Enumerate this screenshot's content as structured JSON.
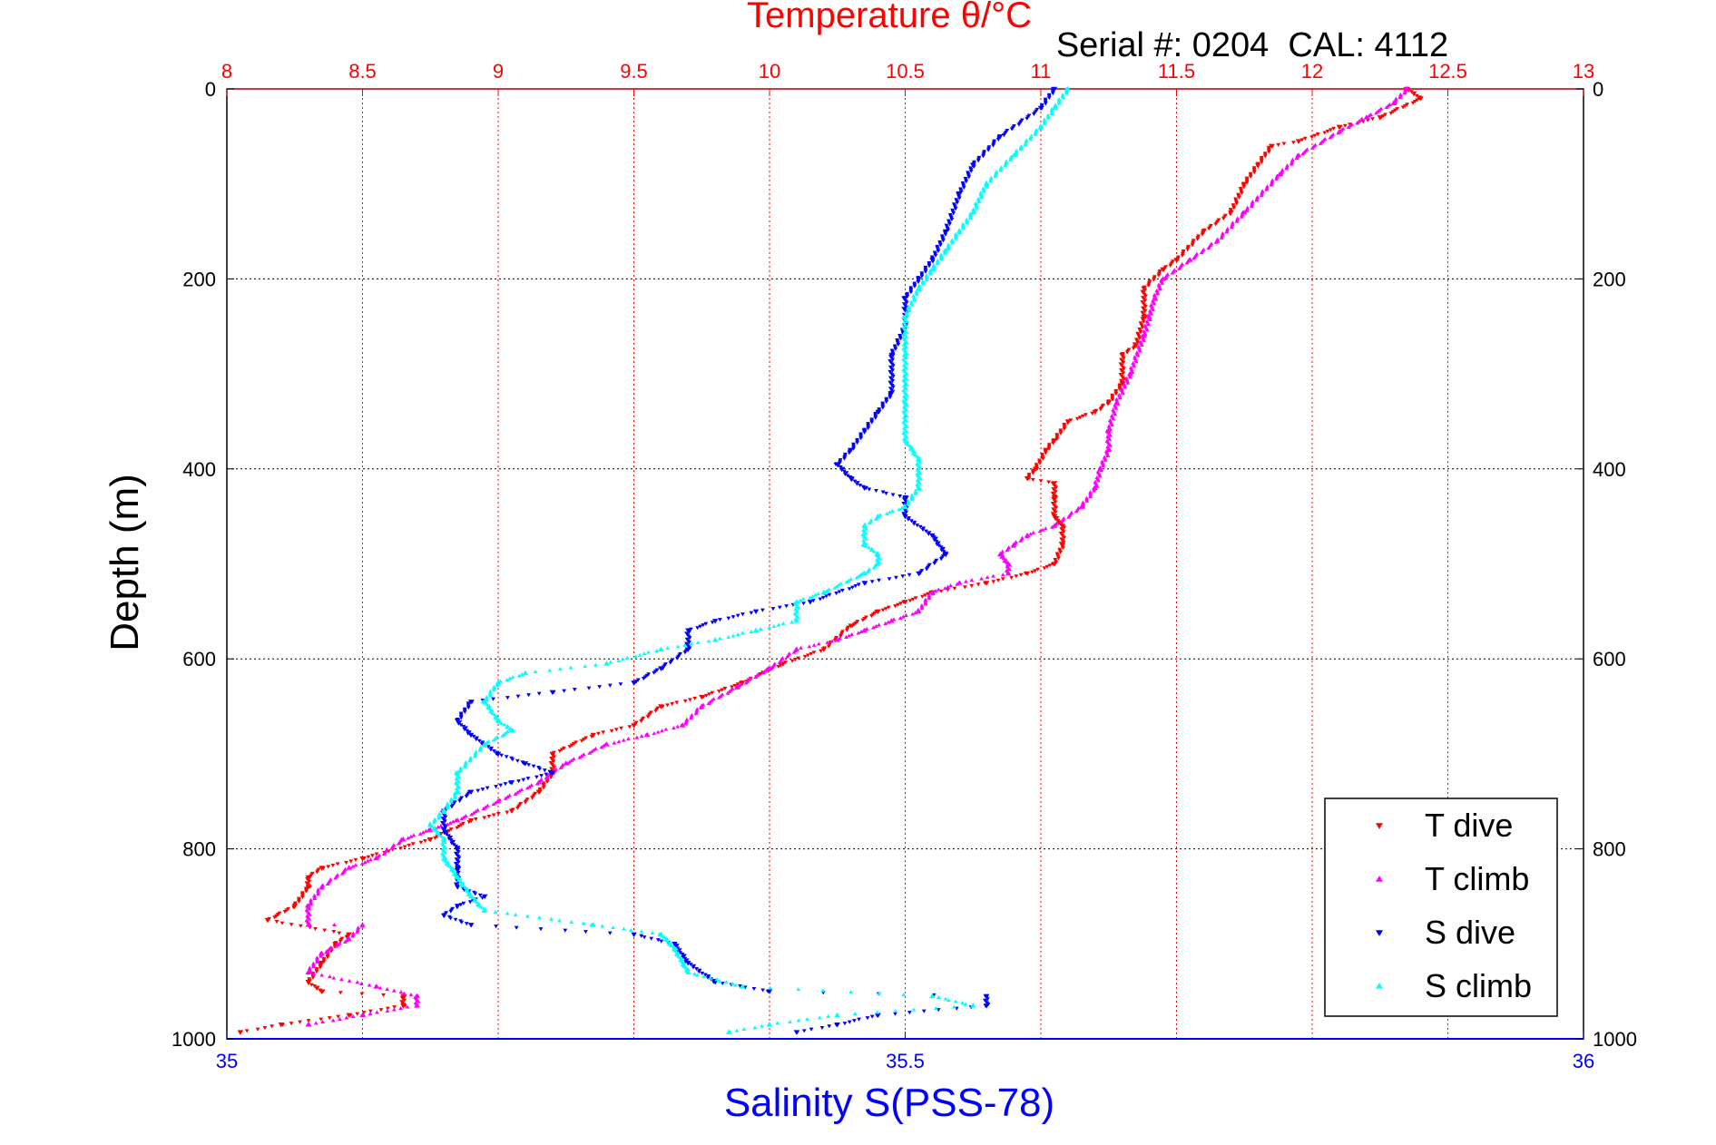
{
  "chart_data": {
    "type": "scatter",
    "title": "Temperature θ/°C",
    "subtitle": "Serial #: 0204  CAL: 4112",
    "xlabel": "Salinity S(PSS-78)",
    "ylabel": "Depth (m)",
    "x_top_label": "Temperature θ/°C",
    "x_top_lim": [
      8,
      13
    ],
    "x_top_ticks": [
      "8",
      "8.5",
      "9",
      "9.5",
      "10",
      "10.5",
      "11",
      "11.5",
      "12",
      "12.5",
      "13"
    ],
    "x_bottom_lim": [
      35,
      36
    ],
    "x_bottom_ticks": [
      "35",
      "35.5",
      "36"
    ],
    "ylim": [
      0,
      1000
    ],
    "y_reversed": true,
    "y_ticks": [
      "0",
      "200",
      "400",
      "600",
      "800",
      "1000"
    ],
    "grid": true,
    "legend_position": "bottom-right",
    "series": [
      {
        "name": "T dive",
        "axis": "temperature",
        "color": "#ff0000",
        "marker": "triangle-down",
        "points": [
          [
            12.35,
            0
          ],
          [
            12.4,
            10
          ],
          [
            12.25,
            30
          ],
          [
            12.1,
            40
          ],
          [
            11.95,
            55
          ],
          [
            11.85,
            60
          ],
          [
            11.8,
            80
          ],
          [
            11.75,
            100
          ],
          [
            11.7,
            130
          ],
          [
            11.6,
            150
          ],
          [
            11.5,
            180
          ],
          [
            11.45,
            190
          ],
          [
            11.38,
            210
          ],
          [
            11.38,
            240
          ],
          [
            11.35,
            270
          ],
          [
            11.3,
            280
          ],
          [
            11.3,
            310
          ],
          [
            11.25,
            330
          ],
          [
            11.2,
            340
          ],
          [
            11.1,
            350
          ],
          [
            11.05,
            370
          ],
          [
            11.02,
            380
          ],
          [
            10.98,
            400
          ],
          [
            10.95,
            410
          ],
          [
            11.05,
            415
          ],
          [
            11.05,
            430
          ],
          [
            11.05,
            450
          ],
          [
            11.08,
            460
          ],
          [
            11.08,
            480
          ],
          [
            11.05,
            500
          ],
          [
            10.95,
            510
          ],
          [
            10.8,
            520
          ],
          [
            10.6,
            530
          ],
          [
            10.5,
            540
          ],
          [
            10.4,
            550
          ],
          [
            10.3,
            565
          ],
          [
            10.2,
            590
          ],
          [
            10.05,
            605
          ],
          [
            9.9,
            625
          ],
          [
            9.75,
            640
          ],
          [
            9.6,
            650
          ],
          [
            9.5,
            670
          ],
          [
            9.35,
            680
          ],
          [
            9.2,
            700
          ],
          [
            9.2,
            720
          ],
          [
            9.15,
            740
          ],
          [
            9.05,
            760
          ],
          [
            8.9,
            770
          ],
          [
            8.75,
            790
          ],
          [
            8.5,
            810
          ],
          [
            8.35,
            820
          ],
          [
            8.3,
            830
          ],
          [
            8.3,
            840
          ],
          [
            8.25,
            860
          ],
          [
            8.15,
            875
          ],
          [
            8.45,
            890
          ],
          [
            8.4,
            900
          ],
          [
            8.35,
            920
          ],
          [
            8.3,
            940
          ],
          [
            8.35,
            950
          ],
          [
            8.65,
            955
          ],
          [
            8.65,
            965
          ],
          [
            8.45,
            975
          ],
          [
            8.2,
            985
          ],
          [
            8.05,
            993
          ]
        ]
      },
      {
        "name": "T climb",
        "axis": "temperature",
        "color": "#ff00ff",
        "marker": "triangle-up",
        "points": [
          [
            12.35,
            0
          ],
          [
            12.3,
            15
          ],
          [
            12.2,
            30
          ],
          [
            12.1,
            45
          ],
          [
            11.95,
            70
          ],
          [
            11.88,
            90
          ],
          [
            11.75,
            130
          ],
          [
            11.65,
            160
          ],
          [
            11.55,
            180
          ],
          [
            11.45,
            200
          ],
          [
            11.42,
            220
          ],
          [
            11.4,
            240
          ],
          [
            11.38,
            260
          ],
          [
            11.33,
            300
          ],
          [
            11.28,
            330
          ],
          [
            11.25,
            360
          ],
          [
            11.25,
            380
          ],
          [
            11.22,
            400
          ],
          [
            11.2,
            420
          ],
          [
            11.15,
            440
          ],
          [
            11.05,
            460
          ],
          [
            10.95,
            470
          ],
          [
            10.9,
            480
          ],
          [
            10.85,
            490
          ],
          [
            10.88,
            500
          ],
          [
            10.88,
            510
          ],
          [
            10.7,
            520
          ],
          [
            10.6,
            530
          ],
          [
            10.55,
            550
          ],
          [
            10.45,
            560
          ],
          [
            10.35,
            570
          ],
          [
            10.25,
            580
          ],
          [
            10.1,
            590
          ],
          [
            10.0,
            610
          ],
          [
            9.88,
            630
          ],
          [
            9.75,
            650
          ],
          [
            9.68,
            670
          ],
          [
            9.55,
            680
          ],
          [
            9.4,
            690
          ],
          [
            9.25,
            710
          ],
          [
            9.15,
            730
          ],
          [
            9.0,
            750
          ],
          [
            8.85,
            770
          ],
          [
            8.75,
            780
          ],
          [
            8.65,
            790
          ],
          [
            8.55,
            810
          ],
          [
            8.45,
            820
          ],
          [
            8.35,
            840
          ],
          [
            8.3,
            860
          ],
          [
            8.3,
            880
          ],
          [
            8.5,
            880
          ],
          [
            8.45,
            895
          ],
          [
            8.35,
            910
          ],
          [
            8.3,
            930
          ],
          [
            8.55,
            945
          ],
          [
            8.7,
            955
          ],
          [
            8.7,
            965
          ],
          [
            8.5,
            975
          ],
          [
            8.3,
            985
          ]
        ]
      },
      {
        "name": "S dive",
        "axis": "salinity",
        "color": "#0000ff",
        "marker": "triangle-down",
        "points": [
          [
            35.61,
            0
          ],
          [
            35.6,
            20
          ],
          [
            35.57,
            50
          ],
          [
            35.55,
            80
          ],
          [
            35.54,
            110
          ],
          [
            35.53,
            150
          ],
          [
            35.52,
            180
          ],
          [
            35.51,
            200
          ],
          [
            35.5,
            220
          ],
          [
            35.5,
            250
          ],
          [
            35.49,
            280
          ],
          [
            35.49,
            320
          ],
          [
            35.48,
            340
          ],
          [
            35.47,
            360
          ],
          [
            35.46,
            380
          ],
          [
            35.45,
            395
          ],
          [
            35.46,
            410
          ],
          [
            35.47,
            420
          ],
          [
            35.5,
            430
          ],
          [
            35.5,
            450
          ],
          [
            35.52,
            470
          ],
          [
            35.53,
            490
          ],
          [
            35.51,
            510
          ],
          [
            35.47,
            520
          ],
          [
            35.43,
            540
          ],
          [
            35.39,
            550
          ],
          [
            35.36,
            560
          ],
          [
            35.34,
            570
          ],
          [
            35.34,
            590
          ],
          [
            35.32,
            610
          ],
          [
            35.3,
            625
          ],
          [
            35.24,
            635
          ],
          [
            35.18,
            645
          ],
          [
            35.17,
            665
          ],
          [
            35.18,
            680
          ],
          [
            35.2,
            700
          ],
          [
            35.22,
            710
          ],
          [
            35.24,
            720
          ],
          [
            35.21,
            730
          ],
          [
            35.18,
            740
          ],
          [
            35.16,
            760
          ],
          [
            35.16,
            780
          ],
          [
            35.17,
            800
          ],
          [
            35.17,
            820
          ],
          [
            35.17,
            840
          ],
          [
            35.19,
            850
          ],
          [
            35.17,
            860
          ],
          [
            35.16,
            870
          ],
          [
            35.18,
            880
          ],
          [
            35.3,
            890
          ],
          [
            35.33,
            900
          ],
          [
            35.34,
            920
          ],
          [
            35.36,
            940
          ],
          [
            35.4,
            950
          ],
          [
            35.56,
            955
          ],
          [
            35.56,
            965
          ],
          [
            35.48,
            975
          ],
          [
            35.45,
            985
          ],
          [
            35.42,
            993
          ]
        ]
      },
      {
        "name": "S climb",
        "axis": "salinity",
        "color": "#00ffff",
        "marker": "triangle-up",
        "points": [
          [
            35.62,
            0
          ],
          [
            35.61,
            20
          ],
          [
            35.6,
            40
          ],
          [
            35.58,
            70
          ],
          [
            35.56,
            100
          ],
          [
            35.55,
            130
          ],
          [
            35.54,
            150
          ],
          [
            35.53,
            170
          ],
          [
            35.52,
            190
          ],
          [
            35.51,
            210
          ],
          [
            35.5,
            240
          ],
          [
            35.5,
            280
          ],
          [
            35.5,
            330
          ],
          [
            35.5,
            370
          ],
          [
            35.51,
            390
          ],
          [
            35.51,
            420
          ],
          [
            35.5,
            440
          ],
          [
            35.48,
            450
          ],
          [
            35.47,
            460
          ],
          [
            35.47,
            480
          ],
          [
            35.48,
            490
          ],
          [
            35.48,
            500
          ],
          [
            35.47,
            510
          ],
          [
            35.44,
            530
          ],
          [
            35.42,
            540
          ],
          [
            35.42,
            560
          ],
          [
            35.39,
            570
          ],
          [
            35.36,
            580
          ],
          [
            35.32,
            590
          ],
          [
            35.28,
            605
          ],
          [
            35.22,
            615
          ],
          [
            35.2,
            625
          ],
          [
            35.19,
            645
          ],
          [
            35.2,
            665
          ],
          [
            35.21,
            675
          ],
          [
            35.19,
            690
          ],
          [
            35.17,
            720
          ],
          [
            35.17,
            740
          ],
          [
            35.16,
            760
          ],
          [
            35.15,
            775
          ],
          [
            35.16,
            790
          ],
          [
            35.16,
            810
          ],
          [
            35.17,
            830
          ],
          [
            35.18,
            850
          ],
          [
            35.19,
            865
          ],
          [
            35.27,
            880
          ],
          [
            35.32,
            890
          ],
          [
            35.33,
            905
          ],
          [
            35.34,
            930
          ],
          [
            35.38,
            945
          ],
          [
            35.52,
            955
          ],
          [
            35.55,
            965
          ],
          [
            35.45,
            975
          ],
          [
            35.4,
            985
          ],
          [
            35.37,
            993
          ]
        ]
      }
    ]
  }
}
